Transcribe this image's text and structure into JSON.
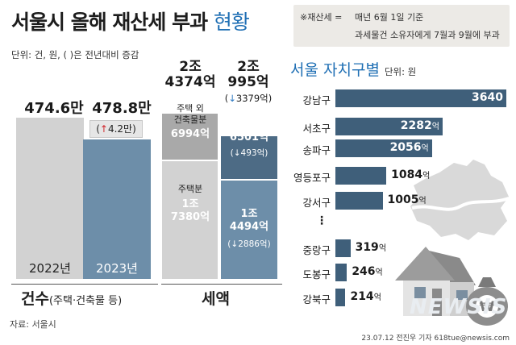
{
  "title_bold": "서울시 올해 재산세 부과",
  "title_light": "현황",
  "unit_note": "단위: 건, 원, ( )은 전년대비 증감",
  "note": {
    "label": "※재산세 =",
    "line1": "매년 6월 1일 기준",
    "line2": "과세물건 소유자에게 7월과 9월에 부과"
  },
  "counts": {
    "axis_label": "건수",
    "axis_sub": "(주택·건축물 등)",
    "y2022_value": "474.6만",
    "y2023_value": "478.8만",
    "change": "4.2만",
    "change_arrow": "↑",
    "year2022": "2022년",
    "year2023": "2023년"
  },
  "tax": {
    "axis_label": "세액",
    "total2022_l1": "2조",
    "total2022_l2": "4374억",
    "total2023_l1": "2조",
    "total2023_l2": "995억",
    "total_change": "3379억",
    "total_change_arrow": "↓",
    "nonhouse_label_l1": "주택 외",
    "nonhouse_label_l2": "건축물분",
    "nonhouse2022": "6994억",
    "nonhouse2023": "6501억",
    "nonhouse_change": "493억",
    "house_label": "주택분",
    "house2022_l1": "1조",
    "house2022_l2": "7380억",
    "house2023_l1": "1조",
    "house2023_l2": "4494억",
    "house_change": "2886억",
    "down_arrow": "↓"
  },
  "districts": {
    "title": "서울 자치구별",
    "unit": "단위: 원",
    "dots": "⋮",
    "eok": "억"
  },
  "source": "자료: 서울시",
  "credit": "23.07.12 전진우 기자 618tue@newsis.com",
  "brand": "NEWSIS",
  "colors": {
    "bar2022": "#d2d2d2",
    "bar2023": "#6d8ea9",
    "tax_nonhouse_2022": "#a9a9a9",
    "tax_house_2022": "#d2d2d2",
    "tax_nonhouse_2023": "#4d6b85",
    "tax_house_2023": "#6d8ea9",
    "district_bar": "#3f5f7a",
    "up": "#d0262c",
    "down": "#2b78c2"
  },
  "chart_data": [
    {
      "type": "bar",
      "categories": [
        "2022년",
        "2023년"
      ],
      "values": [
        474.6,
        478.8
      ],
      "unit": "만 건",
      "change": "4.2만"
    },
    {
      "type": "bar",
      "stacked": true,
      "categories": [
        "2022년",
        "2023년"
      ],
      "series": [
        {
          "name": "주택 외 건축물분",
          "values": [
            6994,
            6501
          ]
        },
        {
          "name": "주택분",
          "values": [
            17380,
            14494
          ]
        }
      ],
      "totals": [
        24374,
        20995
      ],
      "unit": "억 원"
    },
    {
      "type": "bar",
      "orientation": "horizontal",
      "title": "서울 자치구별",
      "categories": [
        "강남구",
        "서초구",
        "송파구",
        "영등포구",
        "강서구",
        "중랑구",
        "도봉구",
        "강북구"
      ],
      "values": [
        3640,
        2282,
        2056,
        1084,
        1005,
        319,
        246,
        214
      ],
      "unit": "억"
    }
  ]
}
